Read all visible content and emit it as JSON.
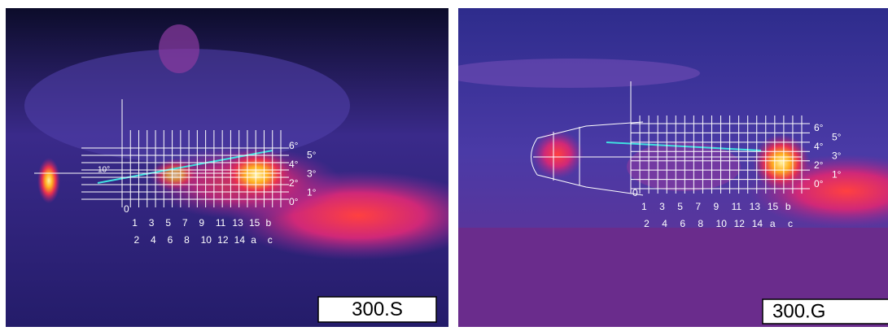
{
  "panels": [
    {
      "label": "300.S",
      "odd_labels": [
        "0",
        "1",
        "3",
        "5",
        "7",
        "9",
        "11",
        "13",
        "15",
        "b"
      ],
      "even_labels": [
        "2",
        "4",
        "6",
        "8",
        "10",
        "12",
        "14",
        "a",
        "c"
      ],
      "angle_labels": [
        "6°",
        "5°",
        "4°",
        "3°",
        "2°",
        "1°",
        "0°"
      ],
      "nozzle_label": "10°"
    },
    {
      "label": "300.G",
      "odd_labels": [
        "0",
        "1",
        "3",
        "5",
        "7",
        "9",
        "11",
        "13",
        "15",
        "b"
      ],
      "even_labels": [
        "2",
        "4",
        "6",
        "8",
        "10",
        "12",
        "14",
        "a",
        "c"
      ],
      "angle_labels": [
        "6°",
        "5°",
        "4°",
        "3°",
        "2°",
        "1°",
        "0°"
      ]
    }
  ]
}
